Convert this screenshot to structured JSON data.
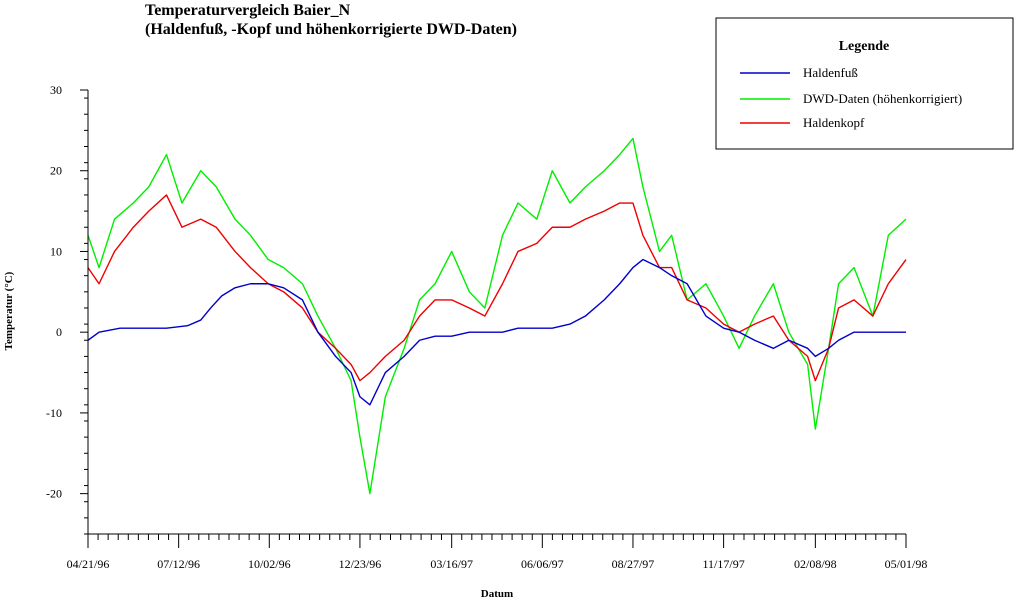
{
  "chart_data": {
    "type": "line",
    "title": "Temperaturvergleich Baier_N",
    "subtitle": "(Haldenfuß, -Kopf und höhenkorrigierte DWD-Daten)",
    "xlabel": "Datum",
    "ylabel": "Temperatur (°C)",
    "x_axis_type": "date",
    "xlim": [
      "1996-04-21",
      "1998-05-01"
    ],
    "ylim": [
      -25,
      30
    ],
    "y_ticks": [
      -20,
      -10,
      0,
      10,
      20,
      30
    ],
    "x_tick_labels": [
      "04/21/96",
      "07/12/96",
      "10/02/96",
      "12/23/96",
      "03/16/97",
      "06/06/97",
      "08/27/97",
      "11/17/97",
      "02/08/98",
      "05/01/98"
    ],
    "x_tick_dates": [
      "1996-04-21",
      "1996-07-12",
      "1996-10-02",
      "1996-12-23",
      "1997-03-16",
      "1997-06-06",
      "1997-08-27",
      "1997-11-17",
      "1998-02-08",
      "1998-05-01"
    ],
    "grid": false,
    "legend_title": "Legende",
    "legend_position": "top-right",
    "series": [
      {
        "name": "Haldenfuß",
        "color": "#0000cc",
        "x": [
          "1996-04-21",
          "1996-05-01",
          "1996-05-20",
          "1996-06-10",
          "1996-07-01",
          "1996-07-20",
          "1996-08-01",
          "1996-08-10",
          "1996-08-20",
          "1996-09-01",
          "1996-09-15",
          "1996-10-01",
          "1996-10-15",
          "1996-11-01",
          "1996-11-15",
          "1996-12-01",
          "1996-12-15",
          "1996-12-23",
          "1997-01-01",
          "1997-01-15",
          "1997-02-01",
          "1997-02-15",
          "1997-03-01",
          "1997-03-16",
          "1997-04-01",
          "1997-04-15",
          "1997-05-01",
          "1997-05-15",
          "1997-06-01",
          "1997-06-15",
          "1997-07-01",
          "1997-07-15",
          "1997-08-01",
          "1997-08-15",
          "1997-08-27",
          "1997-09-05",
          "1997-09-20",
          "1997-10-01",
          "1997-10-15",
          "1997-11-01",
          "1997-11-17",
          "1997-12-01",
          "1997-12-15",
          "1998-01-01",
          "1998-01-15",
          "1998-02-01",
          "1998-02-08",
          "1998-02-20",
          "1998-03-01",
          "1998-03-15",
          "1998-04-01",
          "1998-04-15",
          "1998-05-01"
        ],
        "values": [
          -1,
          0,
          0.5,
          0.5,
          0.5,
          0.8,
          1.5,
          3,
          4.5,
          5.5,
          6,
          6,
          5.5,
          4,
          0,
          -3,
          -5,
          -8,
          -9,
          -5,
          -3,
          -1,
          -0.5,
          -0.5,
          0,
          0,
          0,
          0.5,
          0.5,
          0.5,
          1,
          2,
          4,
          6,
          8,
          9,
          8,
          7,
          6,
          2,
          0.5,
          0,
          -1,
          -2,
          -1,
          -2,
          -3,
          -2,
          -1,
          0,
          0,
          0,
          0
        ]
      },
      {
        "name": "DWD-Daten (höhenkorrigiert)",
        "color": "#00ee00",
        "x": [
          "1996-04-21",
          "1996-05-01",
          "1996-05-15",
          "1996-06-01",
          "1996-06-15",
          "1996-07-01",
          "1996-07-15",
          "1996-08-01",
          "1996-08-15",
          "1996-09-01",
          "1996-09-15",
          "1996-10-01",
          "1996-10-15",
          "1996-11-01",
          "1996-11-15",
          "1996-12-01",
          "1996-12-15",
          "1996-12-23",
          "1997-01-01",
          "1997-01-15",
          "1997-02-01",
          "1997-02-15",
          "1997-03-01",
          "1997-03-16",
          "1997-04-01",
          "1997-04-15",
          "1997-05-01",
          "1997-05-15",
          "1997-06-01",
          "1997-06-15",
          "1997-07-01",
          "1997-07-15",
          "1997-08-01",
          "1997-08-15",
          "1997-08-27",
          "1997-09-05",
          "1997-09-20",
          "1997-10-01",
          "1997-10-15",
          "1997-11-01",
          "1997-11-17",
          "1997-12-01",
          "1997-12-15",
          "1998-01-01",
          "1998-01-15",
          "1998-02-01",
          "1998-02-08",
          "1998-02-20",
          "1998-03-01",
          "1998-03-15",
          "1998-04-01",
          "1998-04-15",
          "1998-05-01"
        ],
        "values": [
          12,
          8,
          14,
          16,
          18,
          22,
          16,
          20,
          18,
          14,
          12,
          9,
          8,
          6,
          2,
          -2,
          -6,
          -13,
          -20,
          -8,
          -2,
          4,
          6,
          10,
          5,
          3,
          12,
          16,
          14,
          20,
          16,
          18,
          20,
          22,
          24,
          18,
          10,
          12,
          4,
          6,
          2,
          -2,
          2,
          6,
          0,
          -4,
          -12,
          -2,
          6,
          8,
          2,
          12,
          14
        ]
      },
      {
        "name": "Haldenkopf",
        "color": "#ee0000",
        "x": [
          "1996-04-21",
          "1996-05-01",
          "1996-05-15",
          "1996-06-01",
          "1996-06-15",
          "1996-07-01",
          "1996-07-15",
          "1996-08-01",
          "1996-08-15",
          "1996-09-01",
          "1996-09-15",
          "1996-10-01",
          "1996-10-15",
          "1996-11-01",
          "1996-11-15",
          "1996-12-01",
          "1996-12-15",
          "1996-12-23",
          "1997-01-01",
          "1997-01-15",
          "1997-02-01",
          "1997-02-15",
          "1997-03-01",
          "1997-03-16",
          "1997-04-01",
          "1997-04-15",
          "1997-05-01",
          "1997-05-15",
          "1997-06-01",
          "1997-06-15",
          "1997-07-01",
          "1997-07-15",
          "1997-08-01",
          "1997-08-15",
          "1997-08-27",
          "1997-09-05",
          "1997-09-20",
          "1997-10-01",
          "1997-10-15",
          "1997-11-01",
          "1997-11-17",
          "1997-12-01",
          "1997-12-15",
          "1998-01-01",
          "1998-01-15",
          "1998-02-01",
          "1998-02-08",
          "1998-02-20",
          "1998-03-01",
          "1998-03-15",
          "1998-04-01",
          "1998-04-15",
          "1998-05-01"
        ],
        "values": [
          8,
          6,
          10,
          13,
          15,
          17,
          13,
          14,
          13,
          10,
          8,
          6,
          5,
          3,
          0,
          -2,
          -4,
          -6,
          -5,
          -3,
          -1,
          2,
          4,
          4,
          3,
          2,
          6,
          10,
          11,
          13,
          13,
          14,
          15,
          16,
          16,
          12,
          8,
          8,
          4,
          3,
          1,
          0,
          1,
          2,
          -1,
          -3,
          -6,
          -2,
          3,
          4,
          2,
          6,
          9
        ]
      }
    ]
  }
}
